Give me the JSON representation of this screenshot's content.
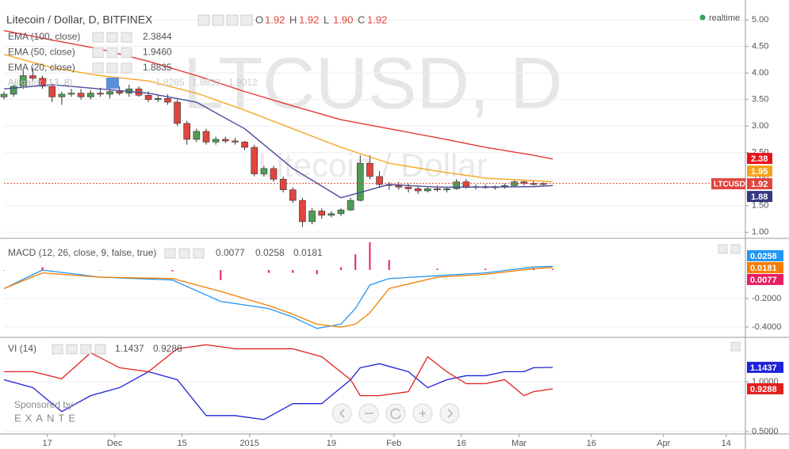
{
  "chart_data": [
    {
      "type": "candlestick",
      "title": "Litecoin / Dollar, D, BITFINEX",
      "watermark": "LTCUSD, D",
      "watermark_sub": "Litecoin / Dollar",
      "status": "realtime",
      "ohlc_names": [
        "O",
        "H",
        "L",
        "C"
      ],
      "ohlc_values": [
        1.92,
        1.92,
        1.9,
        1.92
      ],
      "ohlc_value_labels": [
        "1.92",
        "1.92",
        "1.90",
        "1.92"
      ],
      "up_color": "#4f9d55",
      "down_color": "#e0453d",
      "xlim": [
        0,
        154
      ],
      "ylim": [
        0.9,
        5.3
      ],
      "yticks": [
        {
          "value": 1,
          "label": "1.00"
        },
        {
          "value": 1.5,
          "label": "1.50"
        },
        {
          "value": 2,
          "label": "2.00"
        },
        {
          "value": 2.5,
          "label": "2.50"
        },
        {
          "value": 3,
          "label": "3.00"
        },
        {
          "value": 3.5,
          "label": "3.50"
        },
        {
          "value": 4,
          "label": "4.00"
        },
        {
          "value": 4.5,
          "label": "4.50"
        },
        {
          "value": 5,
          "label": "5.00"
        }
      ],
      "grid": true,
      "x": [
        0,
        2,
        4,
        6,
        8,
        10,
        12,
        14,
        16,
        18,
        20,
        22,
        24,
        26,
        28,
        30,
        32,
        34,
        36,
        38,
        40,
        42,
        44,
        46,
        48,
        50,
        52,
        54,
        56,
        58,
        60,
        62,
        64,
        66,
        68,
        70,
        72,
        74,
        76,
        78,
        80,
        82,
        84,
        86,
        88,
        90,
        92,
        94,
        96,
        98,
        100,
        102,
        104,
        106,
        108,
        110,
        112
      ],
      "open": [
        3.55,
        3.6,
        3.75,
        3.95,
        3.9,
        3.75,
        3.55,
        3.6,
        3.62,
        3.55,
        3.62,
        3.6,
        3.65,
        3.62,
        3.7,
        3.58,
        3.5,
        3.52,
        3.45,
        3.05,
        2.75,
        2.9,
        2.7,
        2.75,
        2.72,
        2.7,
        2.6,
        2.1,
        2.2,
        2.0,
        1.8,
        1.6,
        1.2,
        1.4,
        1.32,
        1.35,
        1.42,
        1.6,
        2.3,
        2.05,
        1.9,
        1.88,
        1.85,
        1.82,
        1.78,
        1.82,
        1.8,
        1.82,
        1.95,
        1.85,
        1.86,
        1.84,
        1.86,
        1.88,
        1.95,
        1.92,
        1.9
      ],
      "high": [
        3.65,
        3.8,
        4.05,
        4.1,
        3.95,
        3.8,
        3.65,
        3.7,
        3.7,
        3.68,
        3.72,
        3.7,
        3.75,
        3.78,
        3.75,
        3.65,
        3.58,
        3.6,
        3.5,
        3.1,
        2.95,
        2.95,
        2.8,
        2.8,
        2.78,
        2.72,
        2.65,
        2.25,
        2.25,
        2.05,
        1.85,
        1.65,
        1.45,
        1.45,
        1.4,
        1.45,
        1.65,
        2.45,
        2.45,
        2.15,
        1.95,
        1.95,
        1.92,
        1.88,
        1.85,
        1.88,
        1.85,
        2.0,
        2.0,
        1.9,
        1.9,
        1.88,
        1.92,
        1.98,
        1.98,
        1.96,
        1.94
      ],
      "low": [
        3.5,
        3.55,
        3.7,
        3.85,
        3.7,
        3.45,
        3.4,
        3.55,
        3.5,
        3.5,
        3.55,
        3.52,
        3.58,
        3.55,
        3.55,
        3.45,
        3.45,
        3.4,
        3.0,
        2.65,
        2.7,
        2.65,
        2.65,
        2.68,
        2.65,
        2.55,
        2.05,
        2.05,
        1.95,
        1.75,
        1.55,
        1.1,
        1.15,
        1.25,
        1.28,
        1.3,
        1.4,
        1.58,
        2.0,
        1.85,
        1.8,
        1.8,
        1.75,
        1.72,
        1.75,
        1.76,
        1.75,
        1.8,
        1.82,
        1.8,
        1.82,
        1.8,
        1.82,
        1.85,
        1.88,
        1.88,
        1.88
      ],
      "close": [
        3.6,
        3.75,
        3.95,
        3.9,
        3.75,
        3.55,
        3.6,
        3.62,
        3.55,
        3.62,
        3.6,
        3.65,
        3.62,
        3.7,
        3.58,
        3.5,
        3.52,
        3.45,
        3.05,
        2.75,
        2.9,
        2.7,
        2.75,
        2.72,
        2.7,
        2.6,
        2.1,
        2.2,
        2.0,
        1.8,
        1.6,
        1.2,
        1.4,
        1.32,
        1.35,
        1.42,
        1.6,
        2.3,
        2.05,
        1.9,
        1.88,
        1.85,
        1.82,
        1.78,
        1.82,
        1.8,
        1.82,
        1.95,
        1.85,
        1.86,
        1.84,
        1.86,
        1.88,
        1.95,
        1.92,
        1.9,
        1.92
      ],
      "series": [
        {
          "name": "EMA (100, close)",
          "color": "#e53935",
          "last_label": "2.3844",
          "x": [
            0,
            10,
            20,
            30,
            40,
            50,
            60,
            70,
            80,
            90,
            100,
            110,
            114
          ],
          "values": [
            4.8,
            4.62,
            4.45,
            4.22,
            3.95,
            3.65,
            3.38,
            3.12,
            2.95,
            2.78,
            2.6,
            2.45,
            2.38
          ]
        },
        {
          "name": "EMA (50, close)",
          "color": "#f5a623",
          "last_label": "1.9460",
          "x": [
            0,
            10,
            20,
            30,
            40,
            50,
            60,
            70,
            80,
            90,
            100,
            110,
            114
          ],
          "values": [
            4.35,
            4.1,
            3.95,
            3.85,
            3.62,
            3.3,
            2.95,
            2.6,
            2.3,
            2.15,
            2.02,
            1.97,
            1.95
          ]
        },
        {
          "name": "EMA (20, close)",
          "color": "#4a4a9c",
          "last_label": "1.8835",
          "x": [
            0,
            10,
            20,
            30,
            40,
            50,
            60,
            70,
            80,
            90,
            100,
            110,
            114
          ],
          "values": [
            3.7,
            3.78,
            3.7,
            3.62,
            3.45,
            2.95,
            2.2,
            1.65,
            1.9,
            1.85,
            1.85,
            1.86,
            1.88
          ]
        }
      ],
      "hidden_indicator": {
        "name": "Alligator (13, 8)",
        "readouts": [
          "1.8285",
          "1.8633",
          "1.9012"
        ]
      },
      "price_tags": [
        {
          "value": 2.38,
          "color": "#e8141b"
        },
        {
          "value": 1.95,
          "color": "#f7a21b"
        },
        {
          "value": 1.92,
          "color": "#e0453d",
          "symbol": "LTCUSD"
        },
        {
          "value": 1.88,
          "color": "#34387f"
        }
      ]
    },
    {
      "type": "macd",
      "title": "MACD (12, 26, close, 9, false, true)",
      "xlim": [
        0,
        154
      ],
      "ylim": [
        -0.4667,
        0.2167
      ],
      "yticks": [
        {
          "value": -0.2,
          "label": "-0.2000"
        },
        {
          "value": -0.4,
          "label": "-0.4000"
        }
      ],
      "grid": true,
      "x": [
        0,
        8,
        20,
        35,
        45,
        55,
        60,
        65,
        70,
        73,
        76,
        80,
        90,
        100,
        110,
        114
      ],
      "histogram": {
        "color": "#e91e63",
        "values": [
          0,
          0.02,
          0,
          -0.01,
          -0.07,
          -0.02,
          -0.02,
          -0.03,
          0.02,
          0.11,
          0.195,
          0.07,
          0.01,
          0.01,
          0.012,
          0.0077
        ]
      },
      "series": [
        {
          "color": "#2196f3",
          "values": [
            -0.13,
            0,
            -0.05,
            -0.07,
            -0.22,
            -0.27,
            -0.33,
            -0.41,
            -0.38,
            -0.27,
            -0.105,
            -0.06,
            -0.04,
            -0.02,
            0.022,
            0.0258
          ]
        },
        {
          "color": "#f57c00",
          "values": [
            -0.13,
            -0.02,
            -0.05,
            -0.06,
            -0.15,
            -0.25,
            -0.31,
            -0.38,
            -0.4,
            -0.38,
            -0.3,
            -0.13,
            -0.05,
            -0.03,
            0.01,
            0.0181
          ]
        }
      ],
      "readouts": [
        {
          "value": 0.0077,
          "label": "0.0077",
          "color": "#e91e63"
        },
        {
          "value": 0.0258,
          "label": "0.0258",
          "color": "#2196f3"
        },
        {
          "value": 0.0181,
          "label": "0.0181",
          "color": "#f57c00"
        }
      ]
    },
    {
      "type": "vortex",
      "title": "VI (14)",
      "xlim": [
        0,
        154
      ],
      "ylim": [
        0.476,
        1.4365
      ],
      "yticks": [
        {
          "value": 1,
          "label": "1.0000"
        },
        {
          "value": 0.5,
          "label": "0.5000"
        }
      ],
      "grid": true,
      "xticks": [
        {
          "value": 9,
          "label": "17"
        },
        {
          "value": 23,
          "label": "Dec"
        },
        {
          "value": 37,
          "label": "15"
        },
        {
          "value": 51,
          "label": "2015"
        },
        {
          "value": 68,
          "label": "19"
        },
        {
          "value": 81,
          "label": "Feb"
        },
        {
          "value": 95,
          "label": "16"
        },
        {
          "value": 107,
          "label": "Mar"
        },
        {
          "value": 122,
          "label": "16"
        },
        {
          "value": 137,
          "label": "Apr"
        },
        {
          "value": 150,
          "label": "14"
        }
      ],
      "x": [
        0,
        6,
        12,
        18,
        24,
        30,
        36,
        42,
        48,
        54,
        60,
        66,
        72,
        74,
        78,
        84,
        88,
        92,
        96,
        100,
        104,
        108,
        110,
        114
      ],
      "series": [
        {
          "color": "#1e22d8",
          "values": [
            1.02,
            0.94,
            0.7,
            0.86,
            0.94,
            1.1,
            1.02,
            0.66,
            0.66,
            0.62,
            0.78,
            0.78,
            1.02,
            1.14,
            1.18,
            1.1,
            0.94,
            1.02,
            1.06,
            1.06,
            1.1,
            1.1,
            1.14,
            1.1437
          ]
        },
        {
          "color": "#e0201f",
          "values": [
            1.1,
            1.1,
            1.03,
            1.29,
            1.14,
            1.1,
            1.33,
            1.37,
            1.33,
            1.33,
            1.33,
            1.25,
            1.02,
            0.86,
            0.86,
            0.9,
            1.25,
            1.1,
            0.98,
            0.98,
            1.02,
            0.86,
            0.9,
            0.9288
          ]
        }
      ],
      "readouts": [
        {
          "value": 1.1437,
          "label": "1.1437",
          "color": "#1e22d8"
        },
        {
          "value": 0.9288,
          "label": "0.9288",
          "color": "#e0201f"
        }
      ]
    }
  ],
  "sponsor": {
    "text": "Sponsored by",
    "brand": "EXANTE"
  }
}
